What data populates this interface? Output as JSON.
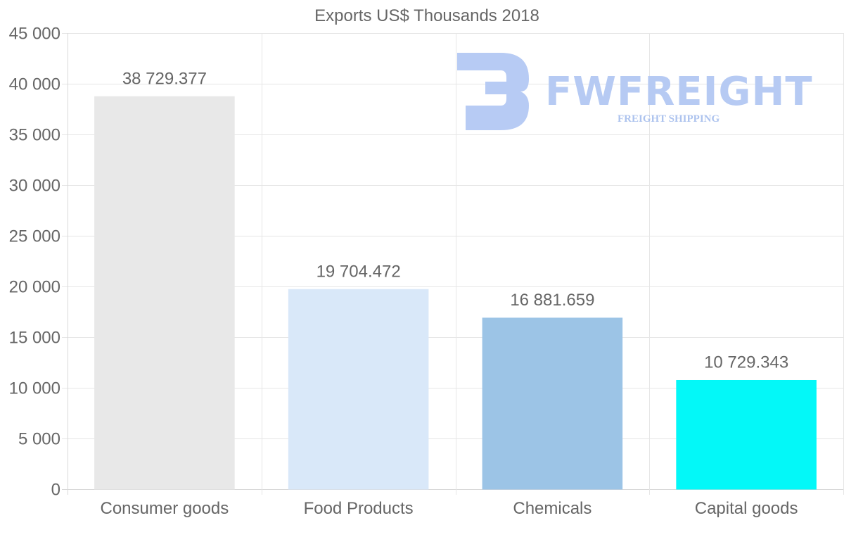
{
  "chart_data": {
    "type": "bar",
    "title": "Exports US$ Thousands 2018",
    "categories": [
      "Consumer goods",
      "Food Products",
      "Chemicals",
      "Capital goods"
    ],
    "values": [
      38729.377,
      19704.472,
      16881.659,
      10729.343
    ],
    "value_labels": [
      "38 729.377",
      "19 704.472",
      "16 881.659",
      "10 729.343"
    ],
    "colors": [
      "#e8e8e8",
      "#d9e8f9",
      "#9cc4e6",
      "#03f8f8"
    ],
    "ylim": [
      0,
      45000
    ],
    "yticks": [
      0,
      5000,
      10000,
      15000,
      20000,
      25000,
      30000,
      35000,
      40000,
      45000
    ],
    "ytick_labels": [
      "0",
      "5 000",
      "10 000",
      "15 000",
      "20 000",
      "25 000",
      "30 000",
      "35 000",
      "40 000",
      "45 000"
    ],
    "xlabel": "",
    "ylabel": "",
    "grid": true,
    "legend": "none"
  },
  "watermark": {
    "brand": "FWFREIGHT",
    "tagline": "FREIGHT SHIPPING",
    "color": "#b3c8f3"
  }
}
